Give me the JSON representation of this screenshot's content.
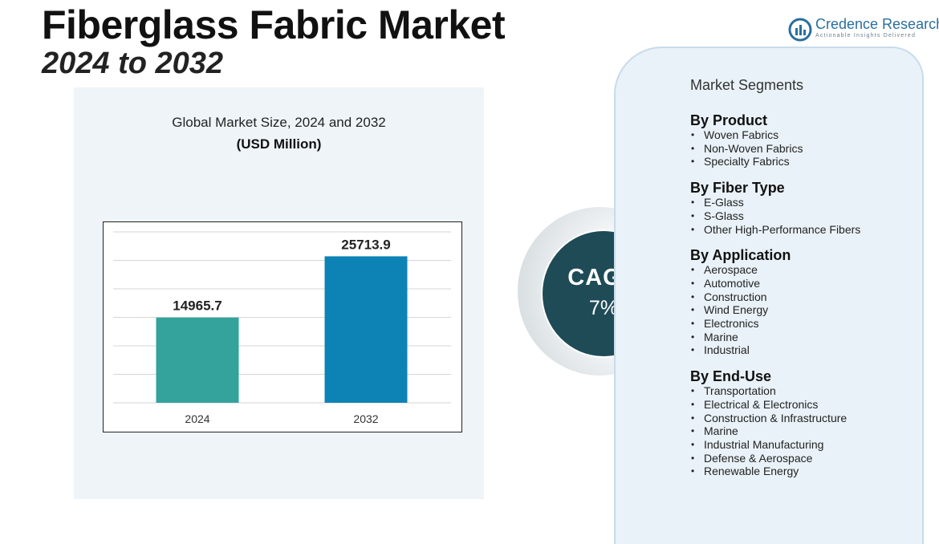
{
  "header": {
    "title": "Fiberglass Fabric Market",
    "subtitle": "2024 to 2032"
  },
  "brand": {
    "name": "Credence Research",
    "tagline": "Actionable Insights Delivered",
    "logo_icon": "bar-chart-circle-icon",
    "color": "#2b6f9e"
  },
  "chart_data": {
    "type": "bar",
    "title": "Global Market Size, 2024 and 2032",
    "unit_label": "(USD Million)",
    "categories": [
      "2024",
      "2032"
    ],
    "values": [
      14965.7,
      25713.9
    ],
    "value_labels": [
      "14965.7",
      "25713.9"
    ],
    "colors": [
      "#33a39c",
      "#0d83b5"
    ],
    "ylim": [
      0,
      30000
    ],
    "grid": true,
    "legend": "none"
  },
  "cagr": {
    "label": "CAGR",
    "value": "7%"
  },
  "segments": {
    "heading": "Market Segments",
    "groups": [
      {
        "title": "By Product",
        "items": [
          "Woven Fabrics",
          "Non-Woven Fabrics",
          "Specialty Fabrics"
        ]
      },
      {
        "title": "By Fiber Type",
        "items": [
          "E-Glass",
          "S-Glass",
          "Other High-Performance Fibers"
        ]
      },
      {
        "title": "By Application",
        "items": [
          "Aerospace",
          "Automotive",
          "Construction",
          "Wind Energy",
          "Electronics",
          "Marine",
          "Industrial"
        ]
      },
      {
        "title": "By End-Use",
        "items": [
          "Transportation",
          "Electrical & Electronics",
          "Construction & Infrastructure",
          "Marine",
          "Industrial Manufacturing",
          "Defense & Aerospace",
          "Renewable Energy"
        ]
      }
    ]
  }
}
